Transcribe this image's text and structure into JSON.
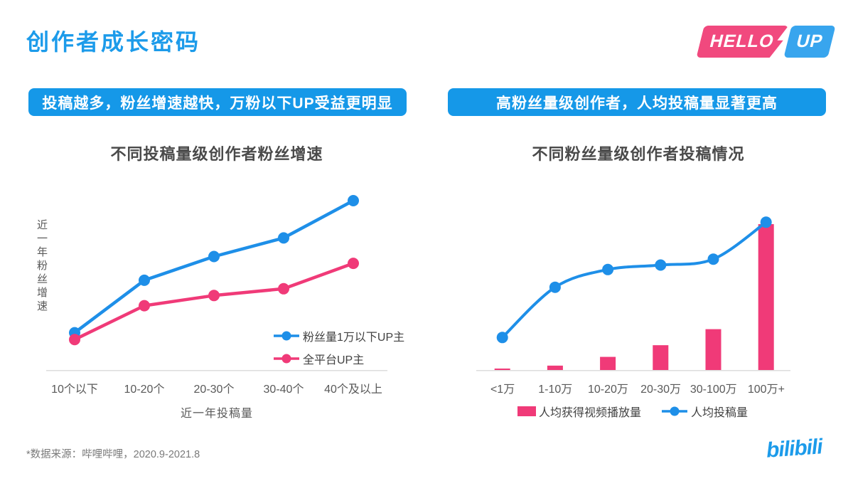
{
  "page": {
    "title": "创作者成长密码",
    "brand_badge": {
      "hello": "HELLO",
      "up": "UP"
    },
    "footnote": "*数据来源：哔哩哔哩，2020.9-2021.8",
    "bilibili_logo": "bilibili"
  },
  "banners": {
    "left": "投稿越多，粉丝增速越快，万粉以下UP受益更明显",
    "right": "高粉丝量级创作者，人均投稿量显著更高"
  },
  "colors": {
    "accent_blue": "#1C9BEA",
    "banner_blue": "#1598E8",
    "chart_blue": "#1E8FE8",
    "chart_pink": "#F03A78",
    "badge_pink": "#F1497E",
    "badge_blue": "#38A5EE",
    "text_dark": "#4A4A4A",
    "text_gray": "#595959",
    "footnote_gray": "#7A7A7A",
    "axis_gray": "#DCDCDC"
  },
  "chart_data": [
    {
      "type": "line",
      "title": "不同投稿量级创作者粉丝增速",
      "xlabel": "近一年投稿量",
      "ylabel": "近一年粉丝增速",
      "categories": [
        "10个以下",
        "10-20个",
        "20-30个",
        "30-40个",
        "40个及以上"
      ],
      "series": [
        {
          "name": "粉丝量1万以下UP主",
          "type": "line",
          "color": "#1E8FE8",
          "values": [
            22,
            53,
            67,
            78,
            100
          ]
        },
        {
          "name": "全平台UP主",
          "type": "line",
          "color": "#F03A78",
          "values": [
            18,
            38,
            44,
            48,
            63
          ]
        }
      ],
      "ylim": [
        0,
        100
      ],
      "grid": false,
      "legend_position": "inside-bottom-right",
      "value_note": "relative fan-growth index 0-100, estimated from pixel positions (no numeric axis shown)"
    },
    {
      "type": "bar",
      "title": "不同粉丝量级创作者投稿情况",
      "xlabel": "",
      "ylabel": "",
      "categories": [
        "<1万",
        "1-10万",
        "10-20万",
        "20-30万",
        "30-100万",
        "100万+"
      ],
      "series": [
        {
          "name": "人均获得视频播放量",
          "type": "bar",
          "color": "#F03A78",
          "values": [
            1,
            3,
            9,
            17,
            28,
            100
          ]
        },
        {
          "name": "人均投稿量",
          "type": "line",
          "color": "#1E8FE8",
          "values": [
            22,
            56,
            68,
            71,
            75,
            100
          ]
        }
      ],
      "ylim": [
        0,
        100
      ],
      "grid": false,
      "legend_position": "bottom",
      "value_note": "relative index 0-100, estimated from pixel positions (no numeric axis shown)"
    }
  ]
}
